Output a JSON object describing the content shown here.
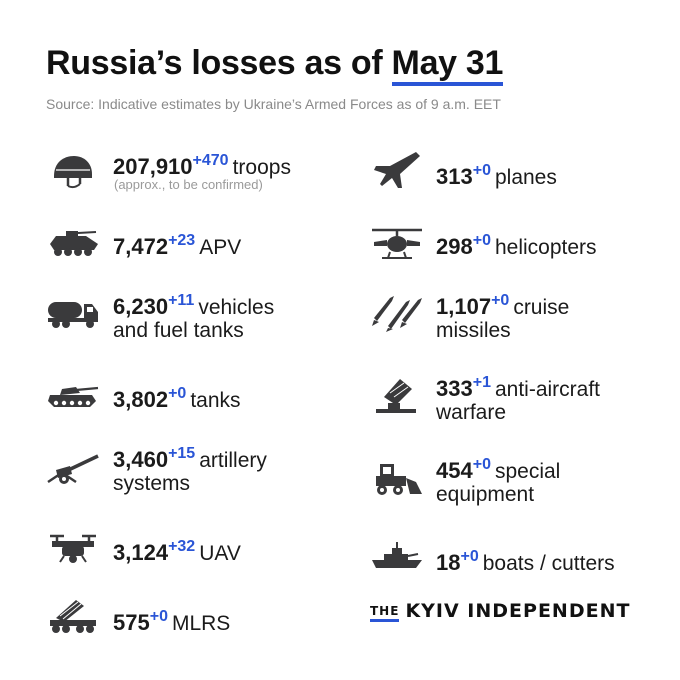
{
  "header": {
    "title_prefix": "Russia’s losses as of ",
    "title_date": "May 31",
    "source": "Source: Indicative estimates by Ukraine’s Armed Forces as of 9 a.m. EET"
  },
  "items": [
    {
      "icon": "helmet-icon",
      "value": "207,910",
      "delta": "+470",
      "label": "troops",
      "label2": "",
      "note": "(approx., to be confirmed)"
    },
    {
      "icon": "apv-icon",
      "value": "7,472",
      "delta": "+23",
      "label": "APV",
      "label2": ""
    },
    {
      "icon": "fuel-truck-icon",
      "value": "6,230",
      "delta": "+11",
      "label": "vehicles",
      "label2": "and fuel tanks"
    },
    {
      "icon": "tank-icon",
      "value": "3,802",
      "delta": "+0",
      "label": "tanks",
      "label2": ""
    },
    {
      "icon": "artillery-icon",
      "value": "3,460",
      "delta": "+15",
      "label": "artillery",
      "label2": "systems"
    },
    {
      "icon": "drone-icon",
      "value": "3,124",
      "delta": "+32",
      "label": "UAV",
      "label2": ""
    },
    {
      "icon": "mlrs-icon",
      "value": "575",
      "delta": "+0",
      "label": "MLRS",
      "label2": ""
    },
    {
      "icon": "plane-icon",
      "value": "313",
      "delta": "+0",
      "label": "planes",
      "label2": ""
    },
    {
      "icon": "helicopter-icon",
      "value": "298",
      "delta": "+0",
      "label": "helicopters",
      "label2": ""
    },
    {
      "icon": "missile-icon",
      "value": "1,107",
      "delta": "+0",
      "label": "cruise",
      "label2": "missiles"
    },
    {
      "icon": "anti-aircraft-icon",
      "value": "333",
      "delta": "+1",
      "label": "anti-aircraft",
      "label2": "warfare"
    },
    {
      "icon": "bulldozer-icon",
      "value": "454",
      "delta": "+0",
      "label": "special",
      "label2": "equipment"
    },
    {
      "icon": "boat-icon",
      "value": "18",
      "delta": "+0",
      "label": "boats / cutters",
      "label2": ""
    }
  ],
  "logo": {
    "the": "THE",
    "name": "KYIV INDEPENDENT"
  },
  "colors": {
    "accent": "#2a55d6",
    "text": "#1b1b1b",
    "icon": "#3a3a3c",
    "muted": "#8a8a8a"
  }
}
